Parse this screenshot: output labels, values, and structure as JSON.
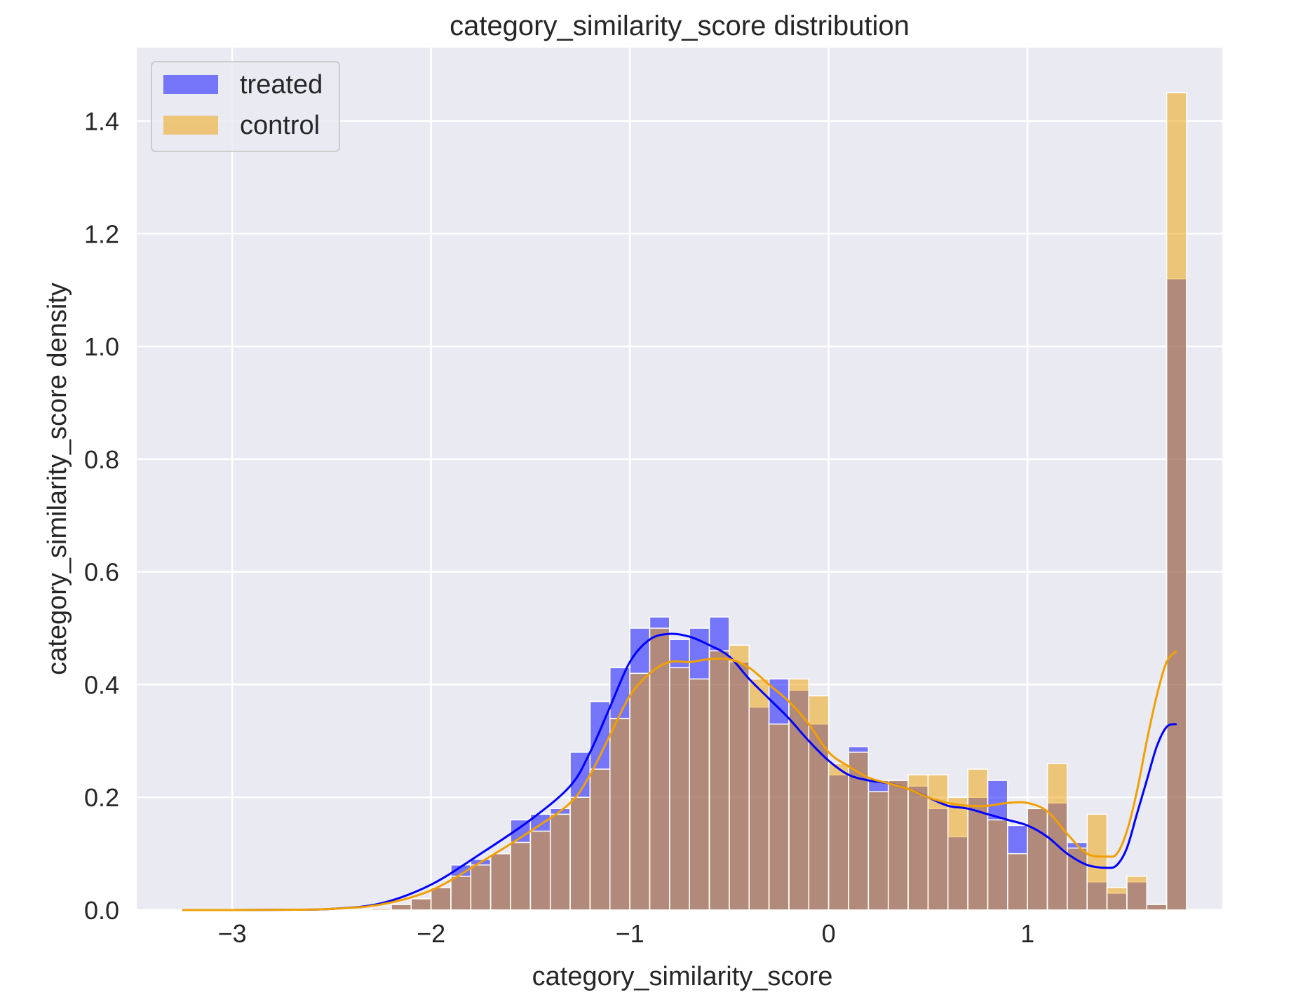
{
  "chart_data": {
    "type": "bar",
    "title": "category_similarity_score distribution",
    "xlabel": "category_similarity_score",
    "ylabel": "category_similarity_score density",
    "xlim": [
      -3.48,
      1.98
    ],
    "ylim": [
      0,
      1.53
    ],
    "x_ticks": [
      -3,
      -2,
      -1,
      0,
      1
    ],
    "x_tick_labels": [
      "−3",
      "−2",
      "−1",
      "0",
      "1"
    ],
    "y_ticks": [
      0.0,
      0.2,
      0.4,
      0.6,
      0.8,
      1.0,
      1.2,
      1.4
    ],
    "y_tick_labels": [
      "0.0",
      "0.2",
      "0.4",
      "0.6",
      "0.8",
      "1.0",
      "1.2",
      "1.4"
    ],
    "grid": true,
    "legend_position": "top-left",
    "bins": {
      "start": -2.3,
      "width": 0.1,
      "x": [
        -2.3,
        -2.2,
        -2.1,
        -2.0,
        -1.9,
        -1.8,
        -1.7,
        -1.6,
        -1.5,
        -1.4,
        -1.3,
        -1.2,
        -1.1,
        -1.0,
        -0.9,
        -0.8,
        -0.7,
        -0.6,
        -0.5,
        -0.4,
        -0.3,
        -0.2,
        -0.1,
        0.0,
        0.1,
        0.2,
        0.3,
        0.4,
        0.5,
        0.6,
        0.7,
        0.8,
        0.9,
        1.0,
        1.1,
        1.2,
        1.3,
        1.4,
        1.5,
        1.6,
        1.7
      ]
    },
    "series": [
      {
        "name": "treated",
        "color": "#0000ff",
        "values": [
          0.005,
          0.01,
          0.02,
          0.04,
          0.08,
          0.09,
          0.1,
          0.16,
          0.17,
          0.18,
          0.28,
          0.37,
          0.43,
          0.5,
          0.52,
          0.48,
          0.5,
          0.52,
          0.44,
          0.36,
          0.41,
          0.39,
          0.33,
          0.24,
          0.29,
          0.23,
          0.23,
          0.22,
          0.18,
          0.13,
          0.2,
          0.23,
          0.15,
          0.18,
          0.19,
          0.12,
          0.05,
          0.03,
          0.05,
          0.01,
          1.12
        ]
      },
      {
        "name": "control",
        "color": "#f0a000",
        "values": [
          0.003,
          0.01,
          0.02,
          0.04,
          0.06,
          0.08,
          0.1,
          0.12,
          0.14,
          0.17,
          0.2,
          0.25,
          0.34,
          0.42,
          0.5,
          0.43,
          0.41,
          0.46,
          0.47,
          0.41,
          0.33,
          0.41,
          0.38,
          0.26,
          0.28,
          0.21,
          0.23,
          0.24,
          0.24,
          0.2,
          0.25,
          0.16,
          0.1,
          0.18,
          0.26,
          0.11,
          0.17,
          0.04,
          0.06,
          0.01,
          1.45
        ]
      }
    ],
    "kde": [
      {
        "name": "treated",
        "color": "#0000ff",
        "x": [
          -3.25,
          -3.0,
          -2.75,
          -2.5,
          -2.25,
          -2.0,
          -1.75,
          -1.5,
          -1.3,
          -1.2,
          -1.1,
          -1.0,
          -0.9,
          -0.8,
          -0.7,
          -0.6,
          -0.5,
          -0.4,
          -0.3,
          -0.2,
          -0.1,
          0.0,
          0.1,
          0.2,
          0.3,
          0.4,
          0.5,
          0.6,
          0.7,
          0.8,
          0.9,
          1.0,
          1.1,
          1.2,
          1.3,
          1.4,
          1.45,
          1.5,
          1.55,
          1.6,
          1.65,
          1.7,
          1.75
        ],
        "y": [
          0.0,
          0.0,
          0.0005,
          0.002,
          0.012,
          0.045,
          0.1,
          0.16,
          0.22,
          0.28,
          0.36,
          0.44,
          0.48,
          0.49,
          0.485,
          0.47,
          0.45,
          0.41,
          0.375,
          0.34,
          0.3,
          0.265,
          0.24,
          0.23,
          0.225,
          0.215,
          0.2,
          0.185,
          0.18,
          0.17,
          0.16,
          0.15,
          0.13,
          0.1,
          0.08,
          0.075,
          0.08,
          0.11,
          0.17,
          0.23,
          0.29,
          0.325,
          0.33
        ]
      },
      {
        "name": "control",
        "color": "#f0a000",
        "x": [
          -3.25,
          -3.0,
          -2.75,
          -2.5,
          -2.25,
          -2.0,
          -1.75,
          -1.5,
          -1.3,
          -1.2,
          -1.1,
          -1.0,
          -0.9,
          -0.8,
          -0.7,
          -0.6,
          -0.5,
          -0.4,
          -0.3,
          -0.2,
          -0.1,
          0.0,
          0.1,
          0.2,
          0.3,
          0.4,
          0.5,
          0.6,
          0.7,
          0.8,
          0.9,
          1.0,
          1.1,
          1.2,
          1.3,
          1.4,
          1.45,
          1.5,
          1.55,
          1.6,
          1.65,
          1.7,
          1.75
        ],
        "y": [
          0.0,
          0.0,
          0.0005,
          0.002,
          0.01,
          0.035,
          0.085,
          0.14,
          0.19,
          0.24,
          0.31,
          0.38,
          0.42,
          0.44,
          0.44,
          0.445,
          0.445,
          0.43,
          0.4,
          0.37,
          0.33,
          0.28,
          0.255,
          0.235,
          0.225,
          0.215,
          0.2,
          0.19,
          0.185,
          0.185,
          0.19,
          0.19,
          0.175,
          0.135,
          0.1,
          0.095,
          0.1,
          0.14,
          0.21,
          0.3,
          0.38,
          0.44,
          0.46
        ]
      }
    ]
  }
}
